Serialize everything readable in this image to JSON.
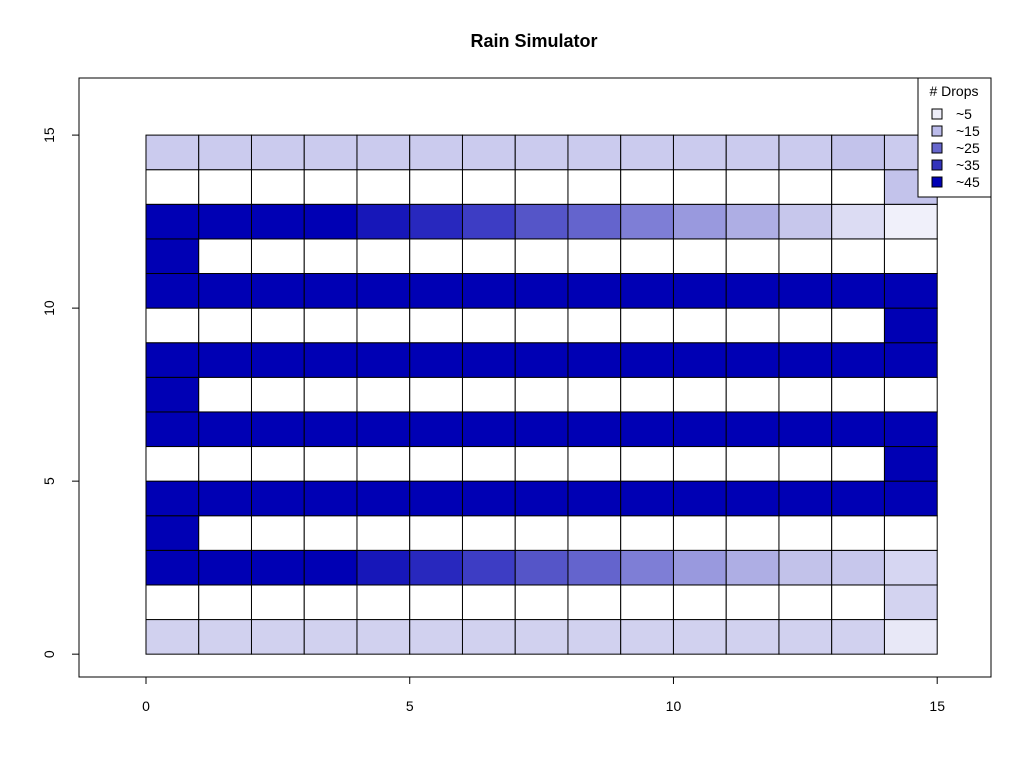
{
  "chart_data": {
    "type": "heatmap",
    "title": "Rain Simulator",
    "xlabel": "",
    "ylabel": "",
    "xlim": [
      -1.27,
      16.02
    ],
    "ylim": [
      -0.66,
      16.65
    ],
    "x_ticks": [
      0,
      5,
      10,
      15
    ],
    "y_ticks": [
      0,
      5,
      10,
      15
    ],
    "grid": false,
    "legend": {
      "title": "# Drops",
      "position": "top-right",
      "entries": [
        {
          "label": "~5",
          "color": "#eeeef9"
        },
        {
          "label": "~15",
          "color": "#bbbbea"
        },
        {
          "label": "~25",
          "color": "#6666cc"
        },
        {
          "label": "~35",
          "color": "#3333bb"
        },
        {
          "label": "~45",
          "color": "#0000b4"
        }
      ]
    },
    "n_cols": 15,
    "n_rows": 15,
    "rows_bottom_to_top": [
      [
        "#d1d1ef",
        "#d1d1ef",
        "#d1d1ef",
        "#d1d1ef",
        "#d1d1ef",
        "#d1d1ef",
        "#d1d1ef",
        "#d1d1ef",
        "#d1d1ef",
        "#d1d1ef",
        "#d1d1ef",
        "#d1d1ef",
        "#d1d1ef",
        "#d1d1ef",
        "#e8e8f7"
      ],
      [
        "#ffffff",
        "#ffffff",
        "#ffffff",
        "#ffffff",
        "#ffffff",
        "#ffffff",
        "#ffffff",
        "#ffffff",
        "#ffffff",
        "#ffffff",
        "#ffffff",
        "#ffffff",
        "#ffffff",
        "#ffffff",
        "#d3d3f0"
      ],
      [
        "#0000b4",
        "#0000b4",
        "#0000b4",
        "#0000b4",
        "#1717b9",
        "#2828be",
        "#3d3dc4",
        "#5555c8",
        "#6464cd",
        "#7e7ed6",
        "#9999de",
        "#aeaee4",
        "#c2c2ea",
        "#c7c7ec",
        "#d6d6f2"
      ],
      [
        "#0000b4",
        "#ffffff",
        "#ffffff",
        "#ffffff",
        "#ffffff",
        "#ffffff",
        "#ffffff",
        "#ffffff",
        "#ffffff",
        "#ffffff",
        "#ffffff",
        "#ffffff",
        "#ffffff",
        "#ffffff",
        "#ffffff"
      ],
      [
        "#0000b4",
        "#0000b4",
        "#0000b4",
        "#0000b4",
        "#0000b4",
        "#0000b4",
        "#0000b4",
        "#0000b4",
        "#0000b4",
        "#0000b4",
        "#0000b4",
        "#0000b4",
        "#0000b4",
        "#0000b4",
        "#0000b4"
      ],
      [
        "#ffffff",
        "#ffffff",
        "#ffffff",
        "#ffffff",
        "#ffffff",
        "#ffffff",
        "#ffffff",
        "#ffffff",
        "#ffffff",
        "#ffffff",
        "#ffffff",
        "#ffffff",
        "#ffffff",
        "#ffffff",
        "#0000b4"
      ],
      [
        "#0000b4",
        "#0000b4",
        "#0000b4",
        "#0000b4",
        "#0000b4",
        "#0000b4",
        "#0000b4",
        "#0000b4",
        "#0000b4",
        "#0000b4",
        "#0000b4",
        "#0000b4",
        "#0000b4",
        "#0000b4",
        "#0000b4"
      ],
      [
        "#0000b4",
        "#ffffff",
        "#ffffff",
        "#ffffff",
        "#ffffff",
        "#ffffff",
        "#ffffff",
        "#ffffff",
        "#ffffff",
        "#ffffff",
        "#ffffff",
        "#ffffff",
        "#ffffff",
        "#ffffff",
        "#ffffff"
      ],
      [
        "#0000b4",
        "#0000b4",
        "#0000b4",
        "#0000b4",
        "#0000b4",
        "#0000b4",
        "#0000b4",
        "#0000b4",
        "#0000b4",
        "#0000b4",
        "#0000b4",
        "#0000b4",
        "#0000b4",
        "#0000b4",
        "#0000b4"
      ],
      [
        "#ffffff",
        "#ffffff",
        "#ffffff",
        "#ffffff",
        "#ffffff",
        "#ffffff",
        "#ffffff",
        "#ffffff",
        "#ffffff",
        "#ffffff",
        "#ffffff",
        "#ffffff",
        "#ffffff",
        "#ffffff",
        "#0000b4"
      ],
      [
        "#0000b4",
        "#0000b4",
        "#0000b4",
        "#0000b4",
        "#0000b4",
        "#0000b4",
        "#0000b4",
        "#0000b4",
        "#0000b4",
        "#0000b4",
        "#0000b4",
        "#0000b4",
        "#0000b4",
        "#0000b4",
        "#0000b4"
      ],
      [
        "#0000b4",
        "#ffffff",
        "#ffffff",
        "#ffffff",
        "#ffffff",
        "#ffffff",
        "#ffffff",
        "#ffffff",
        "#ffffff",
        "#ffffff",
        "#ffffff",
        "#ffffff",
        "#ffffff",
        "#ffffff",
        "#ffffff"
      ],
      [
        "#0000b4",
        "#0000b4",
        "#0000b4",
        "#0000b4",
        "#1717b9",
        "#2828be",
        "#3d3dc4",
        "#5555c8",
        "#6464cd",
        "#7e7ed6",
        "#9999de",
        "#aeaee4",
        "#c7c7ec",
        "#dcdcf3",
        "#f0f0fa"
      ],
      [
        "#ffffff",
        "#ffffff",
        "#ffffff",
        "#ffffff",
        "#ffffff",
        "#ffffff",
        "#ffffff",
        "#ffffff",
        "#ffffff",
        "#ffffff",
        "#ffffff",
        "#ffffff",
        "#ffffff",
        "#ffffff",
        "#c3c3eb"
      ],
      [
        "#cbcbee",
        "#cbcbee",
        "#cbcbee",
        "#cbcbee",
        "#cbcbee",
        "#cbcbee",
        "#cbcbee",
        "#cbcbee",
        "#cbcbee",
        "#cbcbee",
        "#cbcbee",
        "#cbcbee",
        "#cbcbee",
        "#c3c3eb",
        "#cbcbee"
      ]
    ]
  }
}
